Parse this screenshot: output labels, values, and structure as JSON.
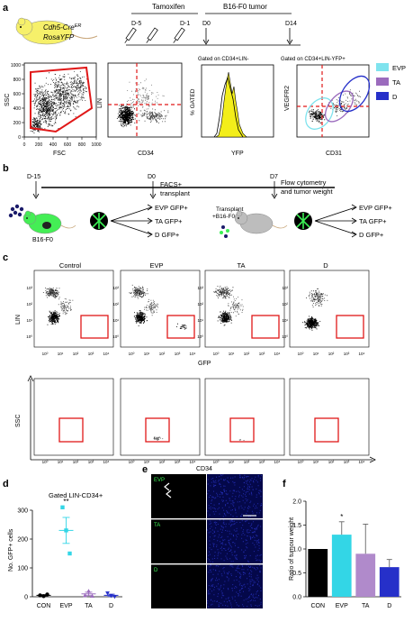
{
  "panel_a": {
    "label": "a",
    "mouse_label_1": "Cdh5-Cre",
    "mouse_label_1_sup": "ER",
    "mouse_label_2": "RosaYFP",
    "tamoxifen": "Tamoxifen",
    "tumor": "B16-F0 tumor",
    "day_m5": "D-5",
    "day_m1": "D-1",
    "day_0": "D0",
    "day_14": "D14",
    "ssc_label": "SSC",
    "fsc_label": "FSC",
    "lin_label": "LIN",
    "cd34_label": "CD34",
    "pct_gated_label": "% GATED",
    "yfp_label": "YFP",
    "vegfr2_label": "VEGFR2",
    "cd31_label": "CD31",
    "gate_title_1": "Gated on CD34+LIN-",
    "gate_title_2": "Gated on CD34+LIN-YFP+",
    "fsc_ticks": [
      "0",
      "200",
      "400",
      "600",
      "800",
      "1000"
    ],
    "ssc_ticks": [
      "0",
      "200",
      "400",
      "600",
      "800",
      "1000"
    ],
    "legend": [
      {
        "label": "EVP",
        "color": "#7fe3ee"
      },
      {
        "label": "TA",
        "color": "#9b6bbd"
      },
      {
        "label": "D",
        "color": "#2630c9"
      }
    ]
  },
  "panel_b": {
    "label": "b",
    "day_m15": "D-15",
    "day_0": "D0",
    "day_7": "D7",
    "facs_1": "FACS+",
    "facs_2": "transplant",
    "transplant_1": "Transplant",
    "transplant_2": "+B16-F0 1:1",
    "flow_1": "Flow cytometry",
    "flow_2": "and tumor weight",
    "b16": "B16-F0",
    "out_left": [
      "EVP GFP+",
      "TA GFP+",
      "D GFP+"
    ],
    "out_right": [
      "EVP GFP+",
      "TA GFP+",
      "D GFP+"
    ]
  },
  "panel_c": {
    "label": "c",
    "titles": [
      "Control",
      "EVP",
      "TA",
      "D"
    ],
    "lin_label": "LIN",
    "gfp_label": "GFP",
    "ssc_label": "SSC",
    "cd34_label": "CD34"
  },
  "panel_d": {
    "label": "d",
    "title": "Gated LIN-CD34+",
    "ylabel": "No. GFP+ cells",
    "significance": "**"
  },
  "panel_e": {
    "label": "e",
    "rows": [
      "EVP",
      "TA",
      "D"
    ]
  },
  "panel_f": {
    "label": "f",
    "ylabel": "Ratio of tumour weight",
    "significance": "*"
  },
  "chart_data": [
    {
      "type": "scatter",
      "title": "Gated LIN-CD34+",
      "xlabel": "",
      "ylabel": "No. GFP+ cells",
      "categories": [
        "CON",
        "EVP",
        "TA",
        "D"
      ],
      "ylim": [
        0,
        300
      ],
      "yticks": [
        0,
        100,
        200,
        300
      ],
      "colors": [
        "#000000",
        "#33d6e6",
        "#9b6bbd",
        "#2630c9"
      ],
      "points": [
        [
          5,
          2,
          8
        ],
        [
          310,
          230,
          150
        ],
        [
          5,
          20,
          3
        ],
        [
          12,
          3,
          0
        ]
      ],
      "mean": [
        5,
        230,
        10,
        5
      ],
      "sem": [
        2,
        45,
        6,
        4
      ]
    },
    {
      "type": "bar",
      "title": "",
      "xlabel": "",
      "ylabel": "Ratio of tumour weight",
      "categories": [
        "CON",
        "EVP",
        "TA",
        "D"
      ],
      "values": [
        1.0,
        1.3,
        0.9,
        0.62
      ],
      "errors": [
        0,
        0.27,
        0.62,
        0.16
      ],
      "colors": [
        "#000000",
        "#33d6e6",
        "#b08acb",
        "#2630c9"
      ],
      "ylim": [
        0,
        2.0
      ],
      "yticks": [
        0,
        0.5,
        1.0,
        1.5,
        2.0
      ]
    }
  ]
}
